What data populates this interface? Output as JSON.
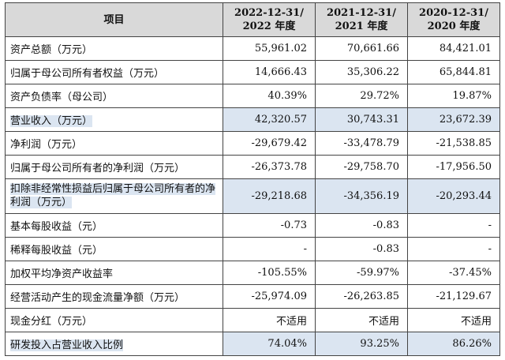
{
  "header": {
    "item": "项目",
    "col1_line1": "2022-12-31/",
    "col1_line2": "2022 年度",
    "col2_line1": "2021-12-31/",
    "col2_line2": "2021 年度",
    "col3_line1": "2020-12-31/",
    "col3_line2": "2020 年度"
  },
  "rows": [
    {
      "label": "资产总额（万元）",
      "v1": "55,961.02",
      "v2": "70,661.66",
      "v3": "84,421.01"
    },
    {
      "label": "归属于母公司所有者权益（万元）",
      "v1": "14,666.43",
      "v2": "35,306.22",
      "v3": "65,844.81"
    },
    {
      "label": "资产负债率（母公司）",
      "v1": "40.39%",
      "v2": "29.72%",
      "v3": "19.87%"
    },
    {
      "label": "营业收入（万元）",
      "v1": "42,320.57",
      "v2": "30,743.31",
      "v3": "23,672.39"
    },
    {
      "label": "净利润（万元）",
      "v1": "-29,679.42",
      "v2": "-33,478.79",
      "v3": "-21,538.85"
    },
    {
      "label": "归属于母公司所有者的净利润（万元）",
      "v1": "-26,373.78",
      "v2": "-29,758.70",
      "v3": "-17,956.50"
    },
    {
      "label": "扣除非经常性损益后归属于母公司所有者的净利润（万元）",
      "v1": "-29,218.68",
      "v2": "-34,356.19",
      "v3": "-20,293.44"
    },
    {
      "label": "基本每股收益（元）",
      "v1": "-0.73",
      "v2": "-0.83",
      "v3": "-"
    },
    {
      "label": "稀释每股收益（元）",
      "v1": "-",
      "v2": "-0.83",
      "v3": "-"
    },
    {
      "label": "加权平均净资产收益率",
      "v1": "-105.55%",
      "v2": "-59.97%",
      "v3": "-37.45%"
    },
    {
      "label": "经营活动产生的现金流量净额（万元）",
      "v1": "-25,974.09",
      "v2": "-26,263.85",
      "v3": "-21,129.67"
    },
    {
      "label": "现金分红（万元）",
      "v1": "不适用",
      "v2": "不适用",
      "v3": "不适用"
    },
    {
      "label": "研发投入占营业收入比例",
      "v1": "74.04%",
      "v2": "93.25%",
      "v3": "86.26%"
    }
  ],
  "colors": {
    "header_bg": "#d9d9d9",
    "highlight_bg": "#dbe5f1",
    "border": "#444444"
  }
}
